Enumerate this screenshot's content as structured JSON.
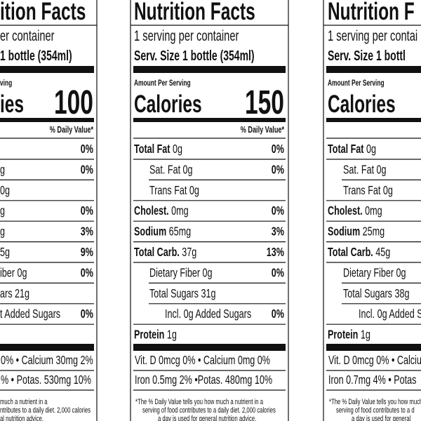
{
  "labels": [
    {
      "title": "ition Facts",
      "servings": "er container",
      "serving_size": "1 bottle (354ml)",
      "amount_per_serving": "ving",
      "calories_label": "ies",
      "calories": "100",
      "daily_value_header": "% Daily Value*",
      "nutrients": [
        {
          "dv": "0%"
        },
        {
          "amount": "g",
          "dv": "0%"
        },
        {
          "amount": "0g"
        },
        {
          "amount": "g",
          "dv": "0%"
        },
        {
          "amount": "g",
          "dv": "3%"
        },
        {
          "amount": "5g",
          "dv": "9%"
        },
        {
          "name": "iber",
          "amount": "0g",
          "dv": "0%"
        },
        {
          "name": "ars",
          "amount": "21g"
        },
        {
          "name": "t Added Sugars",
          "dv": "0%"
        }
      ],
      "vitamins": [
        "0% •  Calcium 30mg 2%",
        "% • Potas. 530mg 10%"
      ],
      "footnote": [
        "much a nutrient in a",
        "ntributes to a daily diet. 2,000 calories",
        "al nutrition advice."
      ]
    },
    {
      "title": "Nutrition Facts",
      "servings": "1 serving per container",
      "serving_size": "Serv. Size 1 bottle (354ml)",
      "amount_per_serving": "Amount Per Serving",
      "calories_label": "Calories",
      "calories": "150",
      "daily_value_header": "% Daily Value*",
      "nutrients": [
        {
          "name": "Total Fat",
          "amount": "0g",
          "dv": "0%"
        },
        {
          "name": "Sat. Fat",
          "amount": "0g",
          "dv": "0%"
        },
        {
          "name": "Trans Fat",
          "amount": "0g"
        },
        {
          "name": "Cholest.",
          "amount": "0mg",
          "dv": "0%"
        },
        {
          "name": "Sodium",
          "amount": "65mg",
          "dv": "3%"
        },
        {
          "name": "Total Carb.",
          "amount": "37g",
          "dv": "13%"
        },
        {
          "name": "Dietary Fiber",
          "amount": "0g",
          "dv": "0%"
        },
        {
          "name": "Total Sugars",
          "amount": "31g"
        },
        {
          "name": "Incl. 0g Added Sugars",
          "dv": "0%"
        },
        {
          "name": "Protein",
          "amount": "1g"
        }
      ],
      "vitamins": [
        "Vit. D 0mcg 0%  •  Calcium 0mg 0%",
        "Iron 0.5mg 2%  •Potas. 480mg 10%"
      ],
      "footnote": [
        "*The % Daily Value tells you how much a nutrient in a",
        "serving of food contributes to a daily diet. 2,000 calories",
        "a day is used for general nutrition advice."
      ]
    },
    {
      "title": "Nutrition F",
      "servings": "1 serving per contai",
      "serving_size": "Serv. Size 1 bottl",
      "amount_per_serving": "Amount Per Serving",
      "calories_label": "Calories",
      "nutrients": [
        {
          "name": "Total Fat",
          "amount": "0g"
        },
        {
          "name": "Sat. Fat",
          "amount": "0g"
        },
        {
          "name": "Trans Fat",
          "amount": "0g"
        },
        {
          "name": "Cholest.",
          "amount": "0mg"
        },
        {
          "name": "Sodium",
          "amount": "25mg"
        },
        {
          "name": "Total Carb.",
          "amount": "45g"
        },
        {
          "name": "Dietary Fiber",
          "amount": "0g"
        },
        {
          "name": "Total Sugars",
          "amount": "38g"
        },
        {
          "name": "Incl. 0g Added Su"
        },
        {
          "name": "Protein",
          "amount": "1g"
        }
      ],
      "vitamins": [
        "Vit. D 0mcg 0%  •  Calciu",
        "Iron 0.7mg 4%  • Potas"
      ],
      "footnote": [
        "*The % Daily Value tells you how much",
        "serving of food contributes to a d",
        "a day is used for general"
      ]
    }
  ]
}
